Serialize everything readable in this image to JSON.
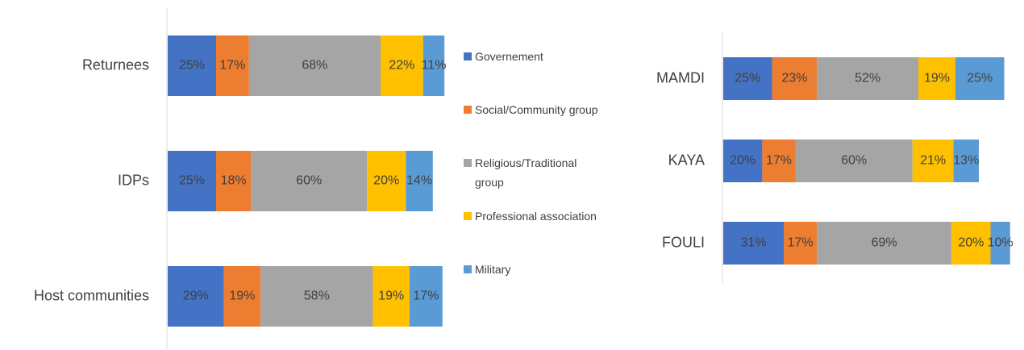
{
  "chart_data": [
    {
      "type": "stacked_bar",
      "orientation": "horizontal",
      "categories": [
        "Returnees",
        "IDPs",
        "Host communities"
      ],
      "series": [
        {
          "name": "Governement",
          "color": "#4472c4",
          "values": [
            25,
            25,
            29
          ],
          "value_labels": [
            "25%",
            "25%",
            "29%"
          ]
        },
        {
          "name": "Social/Community group",
          "color": "#ed7d31",
          "values": [
            17,
            18,
            19
          ],
          "value_labels": [
            "17%",
            "18%",
            "19%"
          ]
        },
        {
          "name": "Religious/Traditional group",
          "color": "#a5a5a5",
          "values": [
            68,
            60,
            58
          ],
          "value_labels": [
            "68%",
            "60%",
            "58%"
          ]
        },
        {
          "name": "Professional association",
          "color": "#ffc000",
          "values": [
            22,
            20,
            19
          ],
          "value_labels": [
            "22%",
            "20%",
            "19%"
          ]
        },
        {
          "name": "Military",
          "color": "#5b9bd5",
          "values": [
            11,
            14,
            17
          ],
          "value_labels": [
            "11%",
            "14%",
            "17%"
          ]
        }
      ],
      "legend": "right"
    },
    {
      "type": "stacked_bar",
      "orientation": "horizontal",
      "categories": [
        "MAMDI",
        "KAYA",
        "FOULI"
      ],
      "series": [
        {
          "color": "#4472c4",
          "values": [
            25,
            20,
            31
          ],
          "value_labels": [
            "25%",
            "20%",
            "31%"
          ]
        },
        {
          "color": "#ed7d31",
          "values": [
            23,
            17,
            17
          ],
          "value_labels": [
            "23%",
            "17%",
            "17%"
          ]
        },
        {
          "color": "#a5a5a5",
          "values": [
            52,
            60,
            69
          ],
          "value_labels": [
            "52%",
            "60%",
            "69%"
          ]
        },
        {
          "color": "#ffc000",
          "values": [
            19,
            21,
            20
          ],
          "value_labels": [
            "19%",
            "21%",
            "20%"
          ]
        },
        {
          "color": "#5b9bd5",
          "values": [
            25,
            13,
            10
          ],
          "value_labels": [
            "25%",
            "13%",
            "10%"
          ]
        }
      ]
    }
  ]
}
